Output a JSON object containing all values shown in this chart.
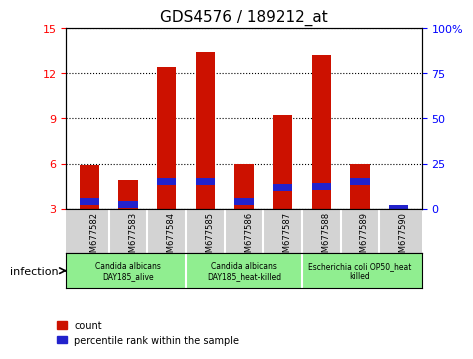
{
  "title": "GDS4576 / 189212_at",
  "samples": [
    "GSM677582",
    "GSM677583",
    "GSM677584",
    "GSM677585",
    "GSM677586",
    "GSM677587",
    "GSM677588",
    "GSM677589",
    "GSM677590"
  ],
  "count_values": [
    5.9,
    4.9,
    12.4,
    13.4,
    6.0,
    9.2,
    13.2,
    6.0,
    3.0
  ],
  "percentile_values": [
    3.5,
    3.3,
    4.8,
    4.8,
    3.5,
    4.4,
    4.5,
    4.8,
    3.0
  ],
  "bar_bottom": 3.0,
  "ylim_left": [
    3,
    15
  ],
  "ylim_right": [
    0,
    100
  ],
  "yticks_left": [
    3,
    6,
    9,
    12,
    15
  ],
  "yticks_right": [
    0,
    25,
    50,
    75,
    100
  ],
  "yticklabels_right": [
    "0",
    "25",
    "50",
    "75",
    "100%"
  ],
  "bar_color": "#cc1100",
  "blue_color": "#2222cc",
  "group_labels": [
    "Candida albicans\nDAY185_alive",
    "Candida albicans\nDAY185_heat-killed",
    "Escherichia coli OP50_heat\nkilled"
  ],
  "group_ranges": [
    [
      0,
      3
    ],
    [
      3,
      6
    ],
    [
      6,
      9
    ]
  ],
  "infection_label": "infection",
  "legend_count": "count",
  "legend_pct": "percentile rank within the sample",
  "background_xtick": "#d3d3d3",
  "background_group": "#90ee90",
  "bar_width": 0.5,
  "blue_bar_height": 0.45
}
